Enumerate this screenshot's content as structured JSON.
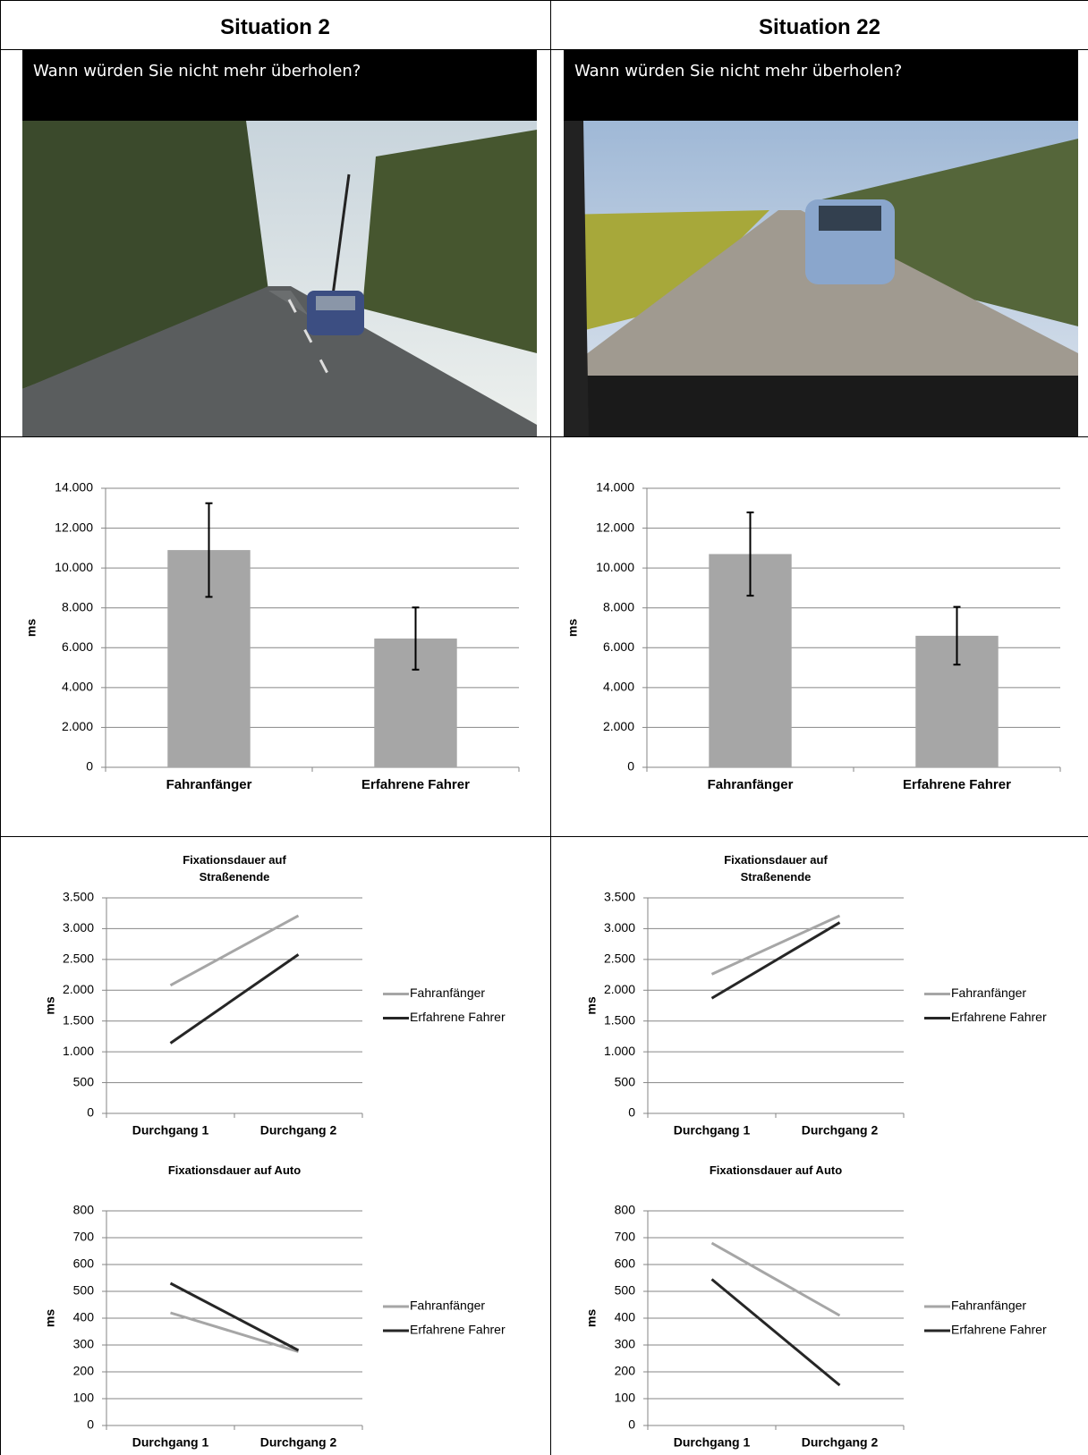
{
  "columns": [
    {
      "title": "Situation 2",
      "video_caption": "Wann würden Sie nicht mehr überholen?"
    },
    {
      "title": "Situation 22",
      "video_caption": "Wann würden Sie nicht mehr überholen?"
    }
  ],
  "chart_data": [
    {
      "type": "bar",
      "y_label": "ms",
      "categories": [
        "Fahranfänger",
        "Erfahrene Fahrer"
      ],
      "values": [
        10900,
        6460
      ],
      "errors": [
        2350,
        1560
      ],
      "color": "#a6a6a6",
      "error_color": "#000000",
      "ylim": [
        0,
        14000
      ],
      "yticks": [
        0,
        {
          "value": 2000,
          "label": "2.000"
        },
        {
          "value": 4000,
          "label": "4.000"
        },
        {
          "value": 6000,
          "label": "6.000"
        },
        {
          "value": 8000,
          "label": "8.000"
        },
        {
          "value": 10000,
          "label": "10.000"
        },
        {
          "value": 12000,
          "label": "12.000"
        },
        {
          "value": 14000,
          "label": "14.000"
        }
      ],
      "grid": true
    },
    {
      "type": "line",
      "title": "Fixationsdauer auf Straßenende",
      "y_label": "ms",
      "categories": [
        "Durchgang 1",
        "Durchgang 2"
      ],
      "series": [
        {
          "name": "Fahranfänger",
          "color": "#a6a6a6",
          "values": [
            2080,
            3210
          ]
        },
        {
          "name": "Erfahrene Fahrer",
          "color": "#262626",
          "values": [
            1140,
            2580
          ]
        }
      ],
      "ylim": [
        0,
        3500
      ],
      "yticks": [
        0,
        500,
        {
          "value": 1000,
          "label": "1.000"
        },
        {
          "value": 1500,
          "label": "1.500"
        },
        {
          "value": 2000,
          "label": "2.000"
        },
        {
          "value": 2500,
          "label": "2.500"
        },
        {
          "value": 3000,
          "label": "3.000"
        },
        {
          "value": 3500,
          "label": "3.500"
        }
      ],
      "grid": true,
      "legend": "right"
    },
    {
      "type": "line",
      "title": "Fixationsdauer auf Auto",
      "y_label": "ms",
      "categories": [
        "Durchgang 1",
        "Durchgang 2"
      ],
      "series": [
        {
          "name": "Fahranfänger",
          "color": "#a6a6a6",
          "values": [
            420,
            275
          ]
        },
        {
          "name": "Erfahrene Fahrer",
          "color": "#262626",
          "values": [
            530,
            280
          ]
        }
      ],
      "ylim": [
        0,
        800
      ],
      "yticks": [
        0,
        100,
        200,
        300,
        400,
        500,
        600,
        700,
        800
      ],
      "grid": true,
      "legend": "right"
    },
    {
      "type": "bar",
      "y_label": "ms",
      "categories": [
        "Fahranfänger",
        "Erfahrene Fahrer"
      ],
      "values": [
        10700,
        6600
      ],
      "errors": [
        2090,
        1450
      ],
      "color": "#a6a6a6",
      "error_color": "#000000",
      "ylim": [
        0,
        14000
      ],
      "yticks": [
        0,
        {
          "value": 2000,
          "label": "2.000"
        },
        {
          "value": 4000,
          "label": "4.000"
        },
        {
          "value": 6000,
          "label": "6.000"
        },
        {
          "value": 8000,
          "label": "8.000"
        },
        {
          "value": 10000,
          "label": "10.000"
        },
        {
          "value": 12000,
          "label": "12.000"
        },
        {
          "value": 14000,
          "label": "14.000"
        }
      ],
      "grid": true
    },
    {
      "type": "line",
      "title": "Fixationsdauer auf Straßenende",
      "y_label": "ms",
      "categories": [
        "Durchgang 1",
        "Durchgang 2"
      ],
      "series": [
        {
          "name": "Fahranfänger",
          "color": "#a6a6a6",
          "values": [
            2260,
            3210
          ]
        },
        {
          "name": "Erfahrene Fahrer",
          "color": "#262626",
          "values": [
            1870,
            3100
          ]
        }
      ],
      "ylim": [
        0,
        3500
      ],
      "yticks": [
        0,
        500,
        {
          "value": 1000,
          "label": "1.000"
        },
        {
          "value": 1500,
          "label": "1.500"
        },
        {
          "value": 2000,
          "label": "2.000"
        },
        {
          "value": 2500,
          "label": "2.500"
        },
        {
          "value": 3000,
          "label": "3.000"
        },
        {
          "value": 3500,
          "label": "3.500"
        }
      ],
      "grid": true,
      "legend": "right"
    },
    {
      "type": "line",
      "title": "Fixationsdauer auf Auto",
      "y_label": "ms",
      "categories": [
        "Durchgang 1",
        "Durchgang 2"
      ],
      "series": [
        {
          "name": "Fahranfänger",
          "color": "#a6a6a6",
          "values": [
            680,
            410
          ]
        },
        {
          "name": "Erfahrene Fahrer",
          "color": "#262626",
          "values": [
            545,
            150
          ]
        }
      ],
      "ylim": [
        0,
        800
      ],
      "yticks": [
        0,
        100,
        200,
        300,
        400,
        500,
        600,
        700,
        800
      ],
      "grid": true,
      "legend": "right"
    }
  ]
}
